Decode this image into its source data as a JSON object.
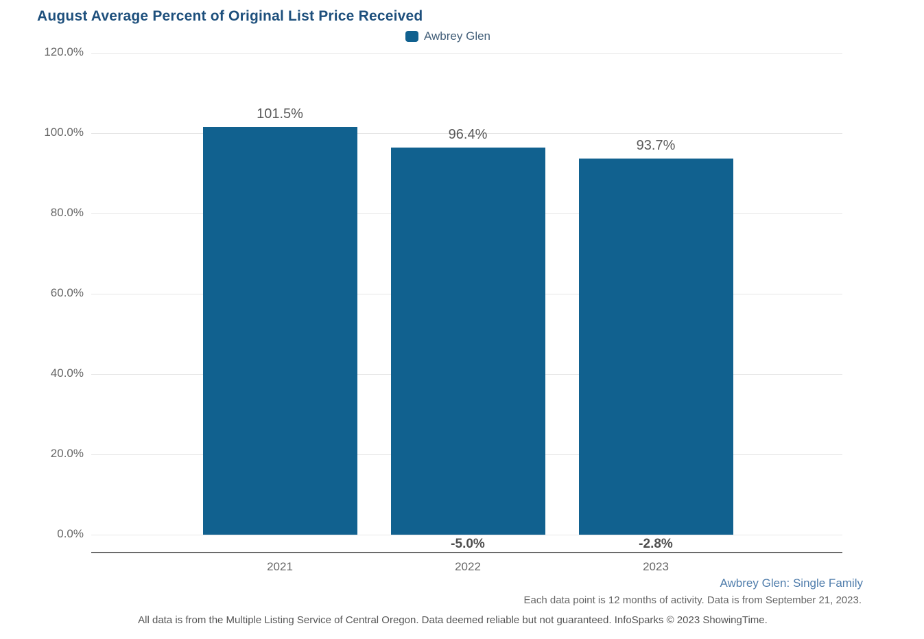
{
  "page": {
    "title": "August Average Percent of Original List Price Received"
  },
  "legend": {
    "label": "Awbrey Glen"
  },
  "footer": {
    "series_note": "Awbrey Glen: Single Family",
    "activity_note": "Each data point is 12 months of activity. Data is from September 21, 2023.",
    "disclaimer": "All data is from the Multiple Listing Service of Central Oregon. Data deemed reliable but not guaranteed. InfoSparks © 2023 ShowingTime."
  },
  "colors": {
    "title": "#1d4f7c",
    "bar": "#11618f",
    "legend_text": "#44607a",
    "grid_line": "#e6e6e6",
    "axis_line": "#6b6b6b",
    "tick_text": "#666666",
    "value_label": "#595959",
    "change_label": "#4d4d4d",
    "footer_link": "#4e7cab",
    "footer_text": "#666666",
    "disclaimer_text": "#555555"
  },
  "chart_data": {
    "type": "bar",
    "title": "August Average Percent of Original List Price Received",
    "categories": [
      "2021",
      "2022",
      "2023"
    ],
    "series": [
      {
        "name": "Awbrey Glen",
        "values": [
          101.5,
          96.4,
          93.7
        ]
      }
    ],
    "value_labels": [
      "101.5%",
      "96.4%",
      "93.7%"
    ],
    "change_labels": [
      "",
      "-5.0%",
      "-2.8%"
    ],
    "ylabel": "",
    "xlabel": "",
    "ylim": [
      0,
      120
    ],
    "ytick_step": 20,
    "ytick_labels": [
      "0.0%",
      "20.0%",
      "40.0%",
      "60.0%",
      "80.0%",
      "100.0%",
      "120.0%"
    ],
    "grid": true,
    "legend_position": "top-center"
  }
}
